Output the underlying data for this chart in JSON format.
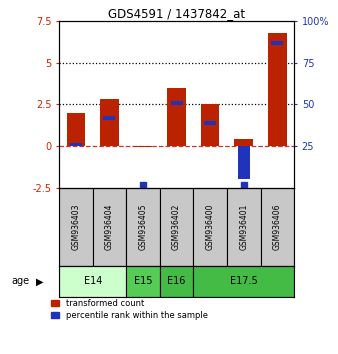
{
  "title": "GDS4591 / 1437842_at",
  "samples": [
    "GSM936403",
    "GSM936404",
    "GSM936405",
    "GSM936402",
    "GSM936400",
    "GSM936401",
    "GSM936406"
  ],
  "red_values": [
    2.0,
    2.85,
    -0.05,
    3.5,
    2.5,
    0.4,
    6.8
  ],
  "blue_values_pct": [
    27,
    43,
    5,
    52,
    40,
    5,
    88
  ],
  "ylim_left": [
    -2.5,
    7.5
  ],
  "ylim_right": [
    0,
    100
  ],
  "yticks_left": [
    -2.5,
    0.0,
    2.5,
    5.0,
    7.5
  ],
  "ytick_labels_left": [
    "-2.5",
    "0",
    "2.5",
    "5",
    "7.5"
  ],
  "yticks_right": [
    25,
    50,
    75,
    100
  ],
  "ytick_labels_right": [
    "25",
    "50",
    "75",
    "100%"
  ],
  "hlines": [
    2.5,
    5.0
  ],
  "zero_line": 0.0,
  "age_groups": [
    {
      "label": "E14",
      "start": 0,
      "end": 2,
      "color": "#ccffcc"
    },
    {
      "label": "E15",
      "start": 2,
      "end": 3,
      "color": "#55cc55"
    },
    {
      "label": "E16",
      "start": 3,
      "end": 4,
      "color": "#44bb44"
    },
    {
      "label": "E17.5",
      "start": 4,
      "end": 7,
      "color": "#44bb44"
    }
  ],
  "red_color": "#bb2200",
  "blue_color": "#2233bb",
  "bar_width": 0.55,
  "legend_red_label": "transformed count",
  "legend_blue_label": "percentile rank within the sample",
  "bg_color": "#ffffff",
  "tick_color_left": "#cc2200",
  "tick_color_right": "#2233bb",
  "zero_line_color": "#cc3333",
  "sample_bg": "#c8c8c8",
  "age_label": "age"
}
